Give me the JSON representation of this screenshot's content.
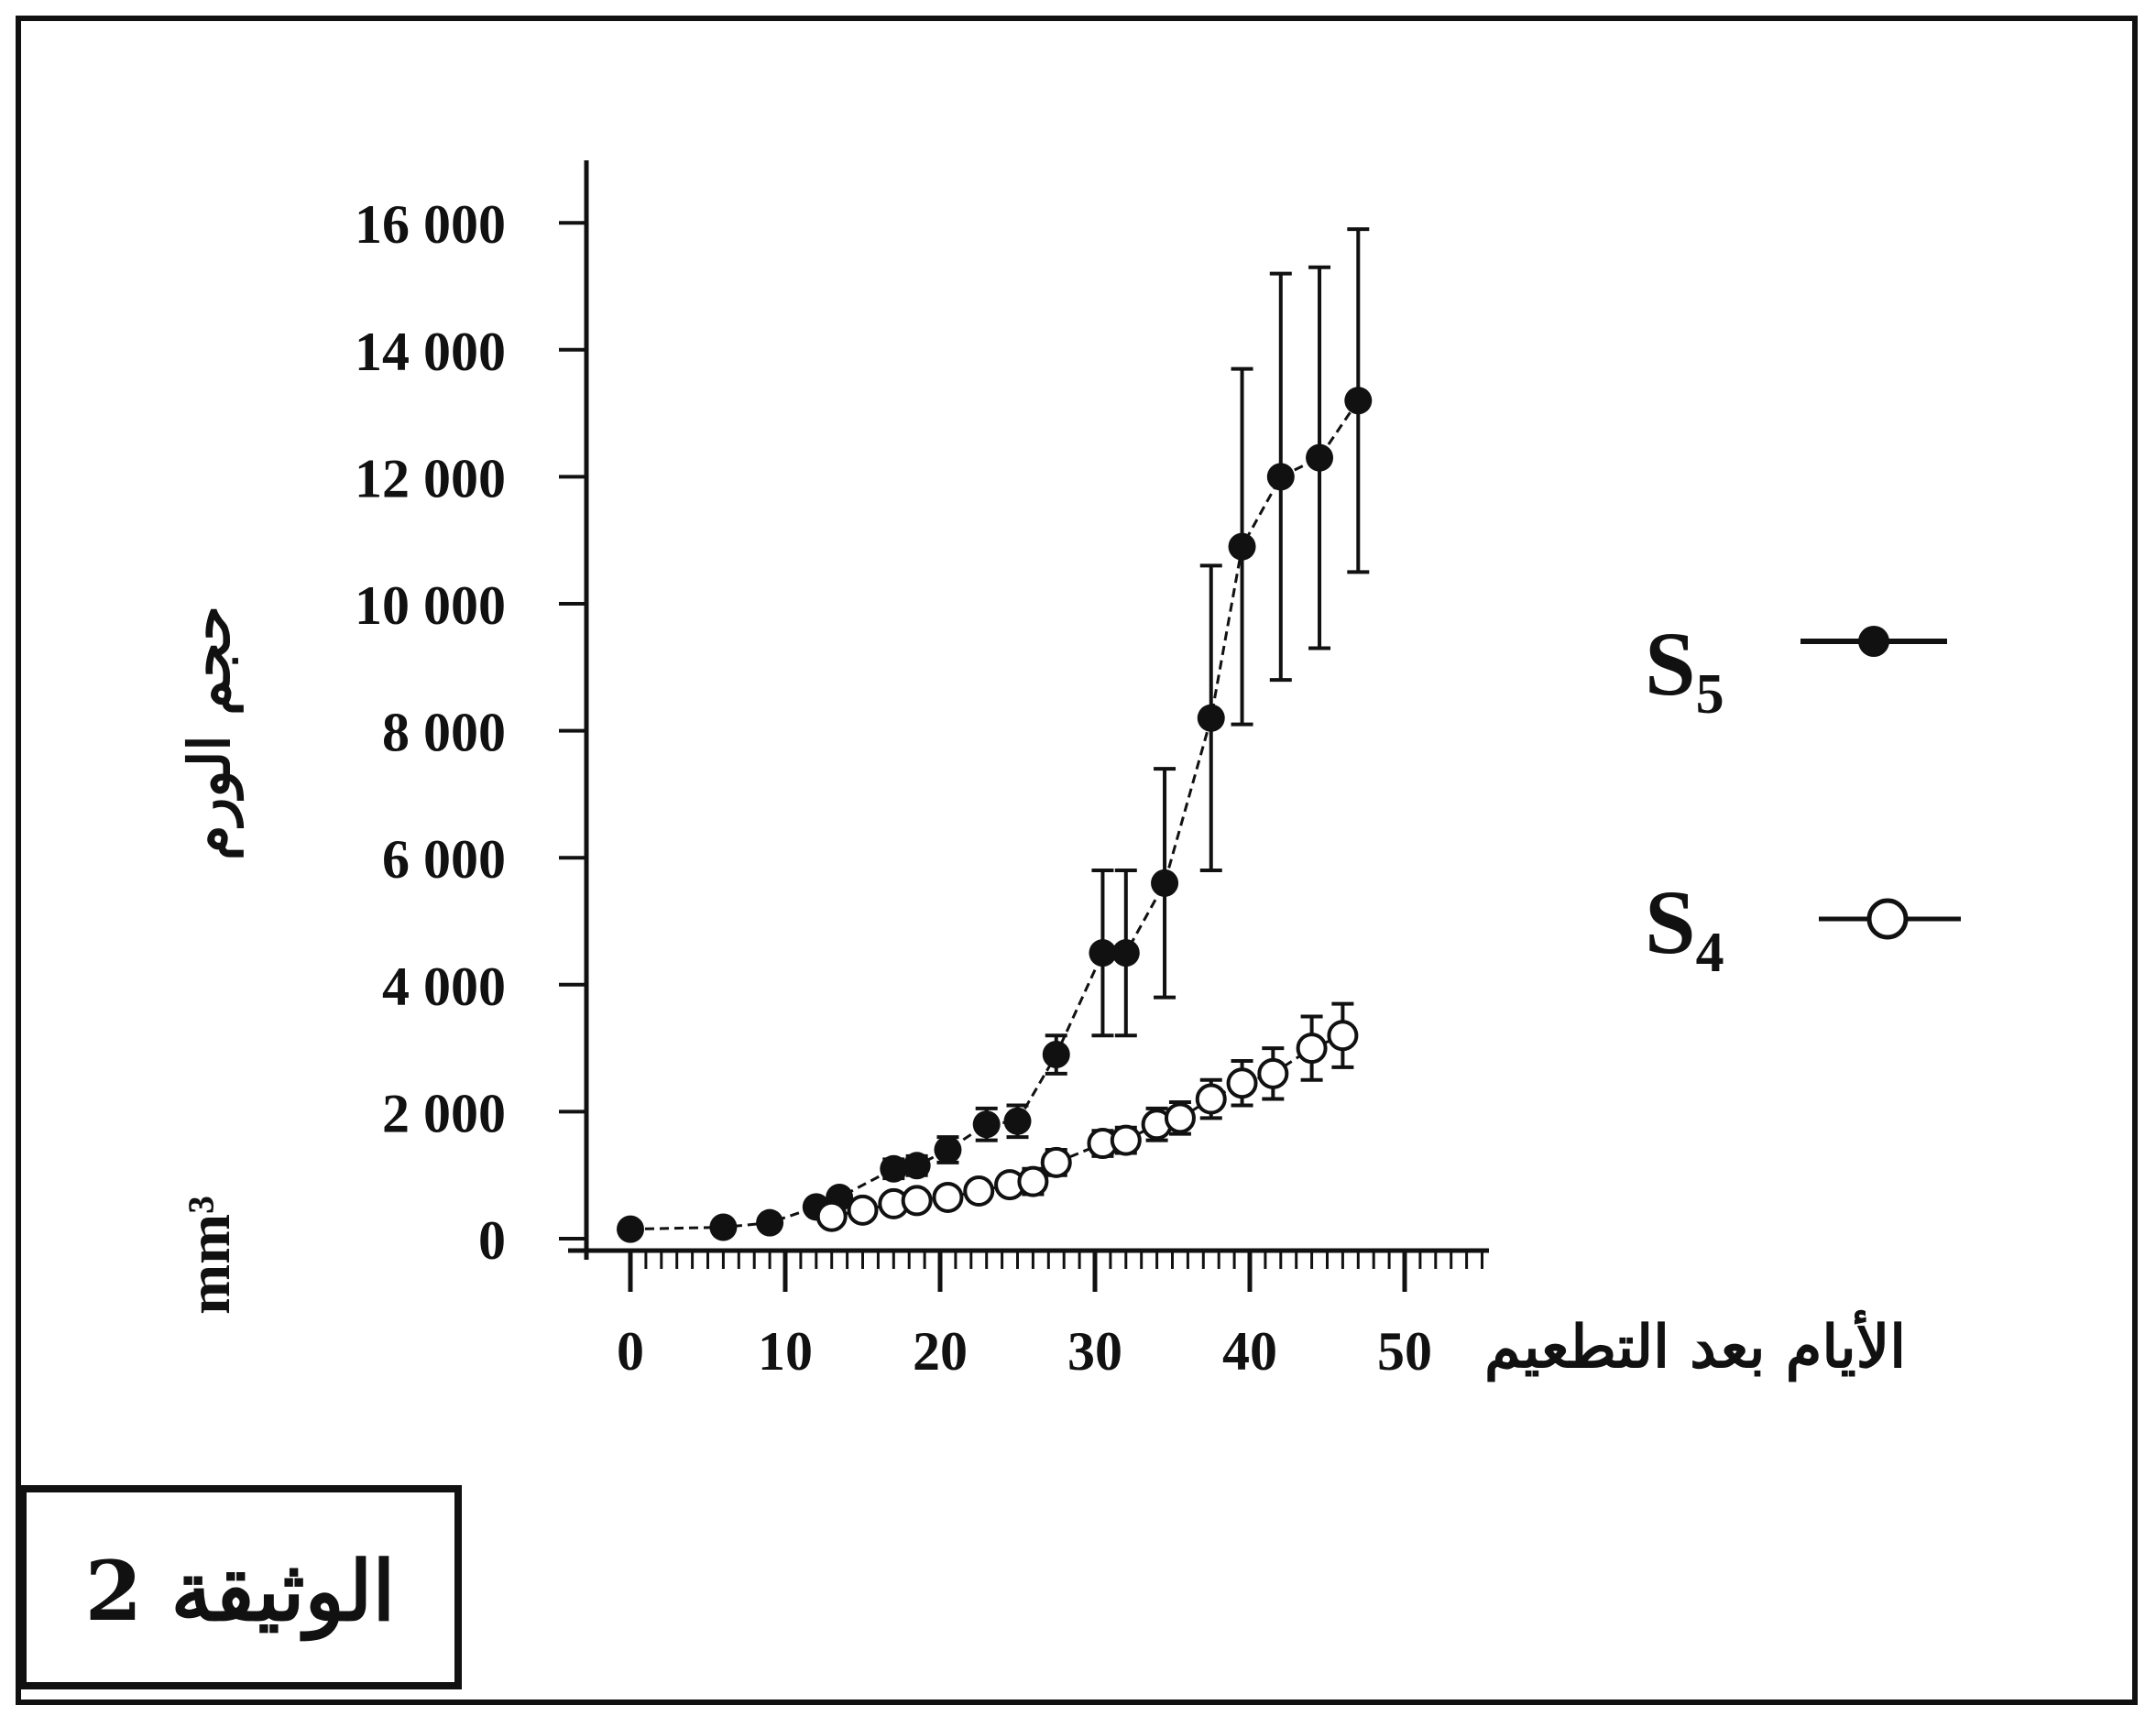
{
  "document_label": "الوثيقة 2",
  "chart_data": {
    "type": "line",
    "xlabel": "الأيام بعد التطعيم",
    "ylabel_main": "حجم الورم",
    "ylabel_unit": "mm³",
    "xlim": [
      0,
      55
    ],
    "ylim": [
      0,
      16000
    ],
    "x_ticks": [
      "0",
      "10",
      "20",
      "30",
      "40",
      "50"
    ],
    "y_ticks": [
      "0",
      "2 000",
      "4 000",
      "6 000",
      "8 000",
      "10 000",
      "12 000",
      "14 000",
      "16 000"
    ],
    "y_tick_values": [
      0,
      2000,
      4000,
      6000,
      8000,
      10000,
      12000,
      14000,
      16000
    ],
    "x_tick_values": [
      0,
      10,
      20,
      30,
      40,
      50
    ],
    "legend_position": "right",
    "series": [
      {
        "name": "S5",
        "marker": "filled-circle",
        "x": [
          0,
          6,
          9,
          12,
          13.5,
          17,
          18.5,
          20.5,
          23,
          25,
          27.5,
          30.5,
          32,
          34.5,
          37.5,
          39.5,
          42,
          44.5,
          47
        ],
        "y": [
          150,
          180,
          250,
          500,
          650,
          1100,
          1150,
          1400,
          1800,
          1850,
          2900,
          4500,
          4500,
          5600,
          8200,
          10900,
          12000,
          12300,
          13200
        ],
        "err": [
          0,
          0,
          0,
          0,
          0,
          150,
          150,
          200,
          250,
          250,
          300,
          1300,
          1300,
          1800,
          2400,
          2800,
          3200,
          3000,
          2700
        ]
      },
      {
        "name": "S4",
        "marker": "open-circle",
        "x": [
          13,
          15,
          17,
          18.5,
          20.5,
          22.5,
          24.5,
          26,
          27.5,
          30.5,
          32,
          34,
          35.5,
          37.5,
          39.5,
          41.5,
          44,
          46
        ],
        "y": [
          350,
          450,
          550,
          600,
          650,
          750,
          850,
          900,
          1200,
          1500,
          1550,
          1800,
          1900,
          2200,
          2450,
          2600,
          3000,
          3200
        ],
        "err": [
          0,
          0,
          0,
          0,
          100,
          150,
          150,
          200,
          200,
          200,
          200,
          250,
          250,
          300,
          350,
          400,
          500,
          500
        ]
      }
    ],
    "legend": [
      {
        "label": "S",
        "sub": "5",
        "marker": "filled-circle"
      },
      {
        "label": "S",
        "sub": "4",
        "marker": "open-circle"
      }
    ]
  }
}
